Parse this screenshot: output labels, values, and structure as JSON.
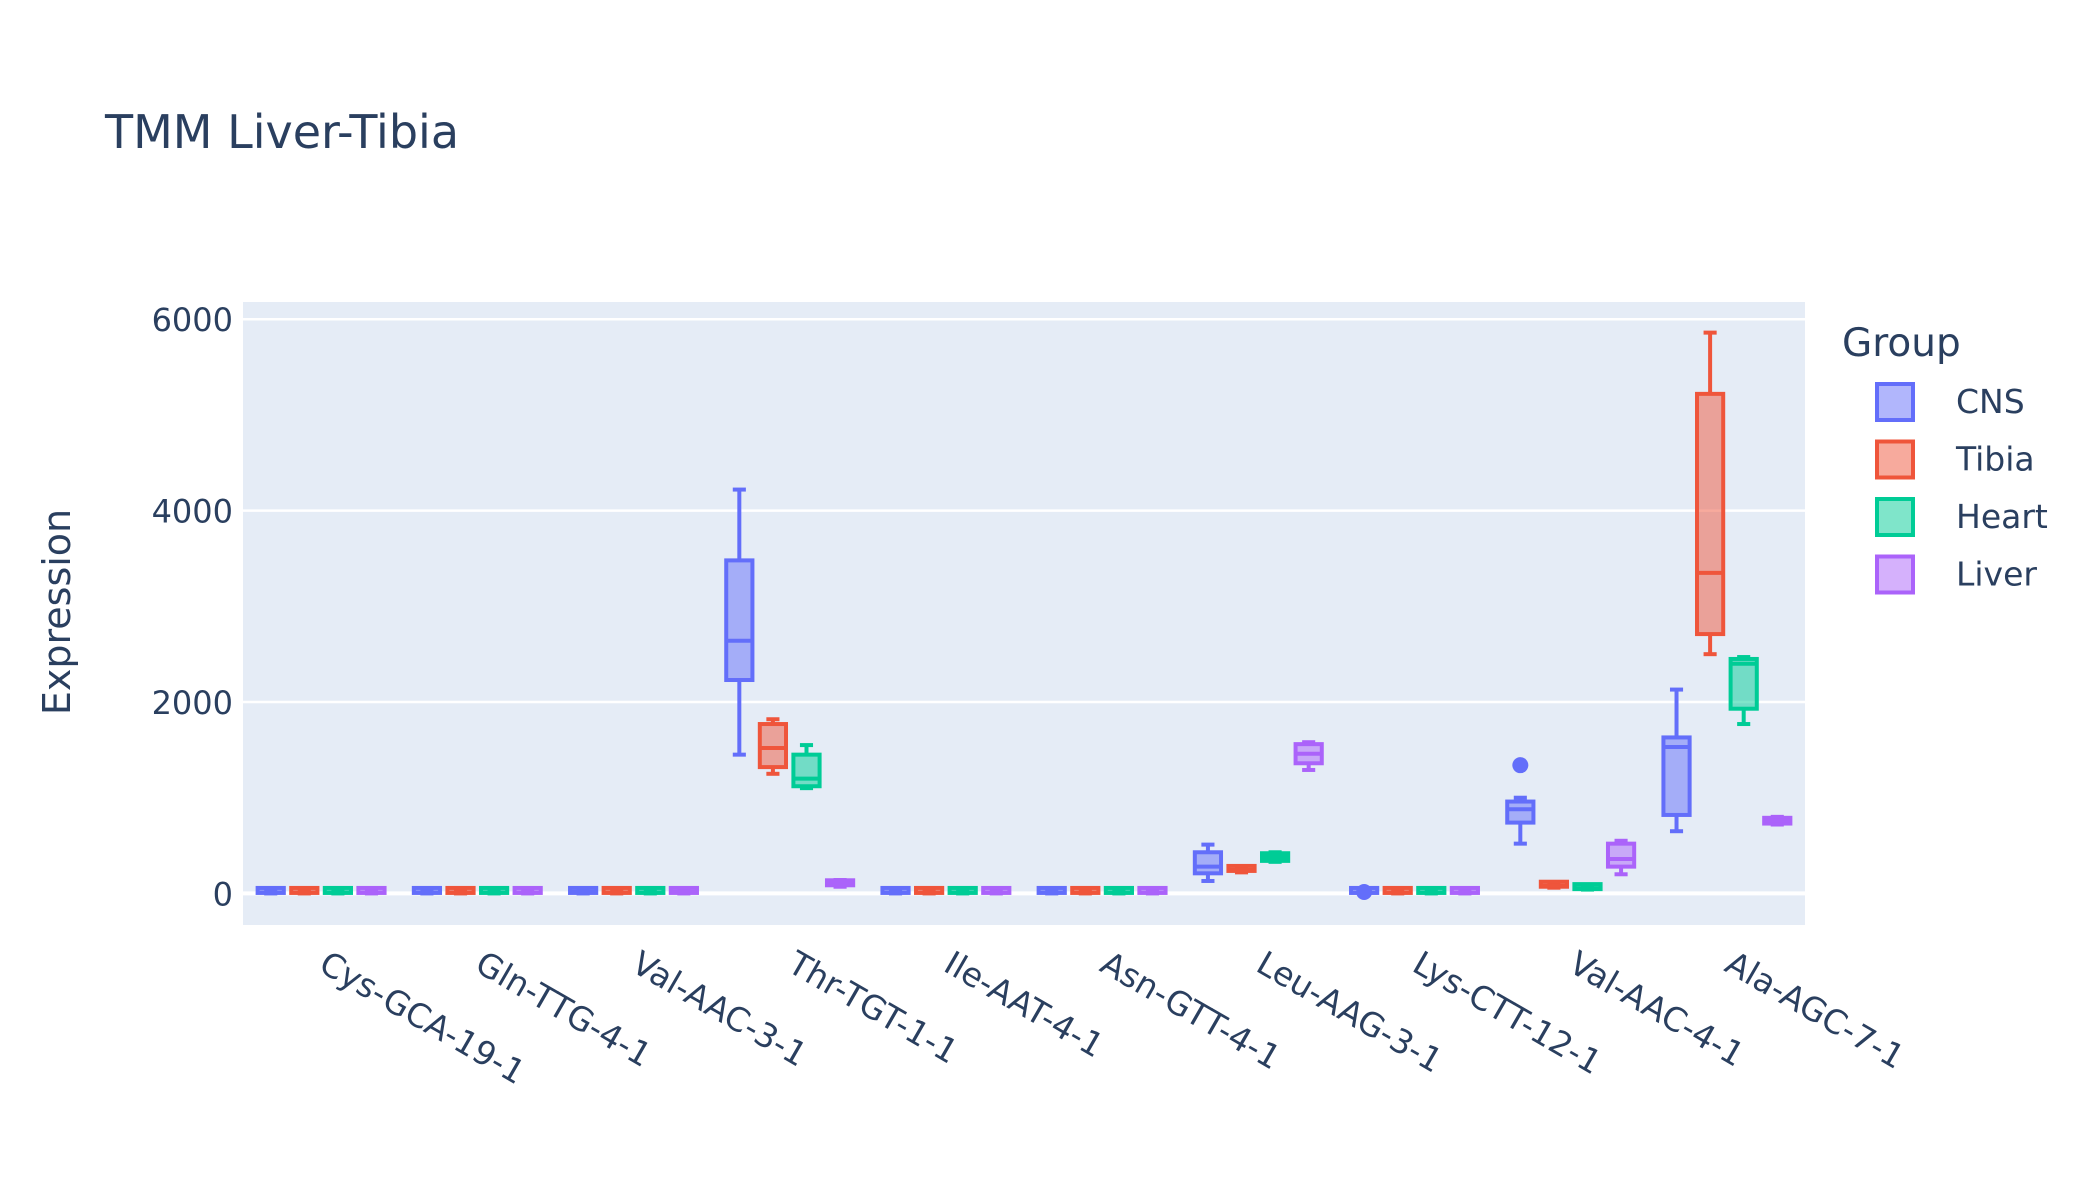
{
  "chart_data": {
    "type": "box",
    "title": "TMM Liver-Tibia",
    "ylabel": "Expression",
    "xlabel": "",
    "ylim": [
      -330,
      6180
    ],
    "yticks": [
      0,
      2000,
      4000,
      6000
    ],
    "grid": true,
    "legend": {
      "title": "Group",
      "placement": "right"
    },
    "categories": [
      "Cys-GCA-19-1",
      "Gln-TTG-4-1",
      "Val-AAC-3-1",
      "Thr-TGT-1-1",
      "Ile-AAT-4-1",
      "Asn-GTT-4-1",
      "Leu-AAG-3-1",
      "Lys-CTT-12-1",
      "Val-AAC-4-1",
      "Ala-AGC-7-1"
    ],
    "series": [
      {
        "name": "CNS",
        "color": "#636efa",
        "boxes": [
          {
            "min": 0,
            "q1": 5,
            "median": 10,
            "q3": 20,
            "max": 25,
            "outliers": []
          },
          {
            "min": 0,
            "q1": 5,
            "median": 10,
            "q3": 20,
            "max": 25,
            "outliers": []
          },
          {
            "min": 0,
            "q1": 5,
            "median": 15,
            "q3": 30,
            "max": 40,
            "outliers": []
          },
          {
            "min": 1450,
            "q1": 2230,
            "median": 2640,
            "q3": 3480,
            "max": 4220,
            "outliers": []
          },
          {
            "min": 0,
            "q1": 5,
            "median": 10,
            "q3": 20,
            "max": 25,
            "outliers": []
          },
          {
            "min": 0,
            "q1": 5,
            "median": 10,
            "q3": 20,
            "max": 25,
            "outliers": []
          },
          {
            "min": 130,
            "q1": 210,
            "median": 280,
            "q3": 430,
            "max": 510,
            "outliers": []
          },
          {
            "min": 0,
            "q1": 5,
            "median": 8,
            "q3": 12,
            "max": 15,
            "outliers": [
              15
            ]
          },
          {
            "min": 520,
            "q1": 740,
            "median": 880,
            "q3": 960,
            "max": 1000,
            "outliers": [
              1340
            ]
          },
          {
            "min": 650,
            "q1": 820,
            "median": 1530,
            "q3": 1630,
            "max": 2130,
            "outliers": []
          }
        ]
      },
      {
        "name": "Tibia",
        "color": "#ef553b",
        "boxes": [
          {
            "min": 0,
            "q1": 5,
            "median": 10,
            "q3": 20,
            "max": 25,
            "outliers": []
          },
          {
            "min": 0,
            "q1": 5,
            "median": 10,
            "q3": 20,
            "max": 25,
            "outliers": []
          },
          {
            "min": 0,
            "q1": 5,
            "median": 10,
            "q3": 20,
            "max": 25,
            "outliers": []
          },
          {
            "min": 1250,
            "q1": 1320,
            "median": 1520,
            "q3": 1770,
            "max": 1820,
            "outliers": []
          },
          {
            "min": 0,
            "q1": 5,
            "median": 10,
            "q3": 20,
            "max": 25,
            "outliers": []
          },
          {
            "min": 0,
            "q1": 5,
            "median": 10,
            "q3": 20,
            "max": 25,
            "outliers": []
          },
          {
            "min": 220,
            "q1": 235,
            "median": 245,
            "q3": 260,
            "max": 270,
            "outliers": []
          },
          {
            "min": 0,
            "q1": 5,
            "median": 10,
            "q3": 20,
            "max": 25,
            "outliers": []
          },
          {
            "min": 60,
            "q1": 70,
            "median": 80,
            "q3": 95,
            "max": 100,
            "outliers": []
          },
          {
            "min": 2500,
            "q1": 2710,
            "median": 3350,
            "q3": 5220,
            "max": 5860,
            "outliers": []
          }
        ]
      },
      {
        "name": "Heart",
        "color": "#00cc96",
        "boxes": [
          {
            "min": 0,
            "q1": 5,
            "median": 10,
            "q3": 20,
            "max": 25,
            "outliers": []
          },
          {
            "min": 0,
            "q1": 5,
            "median": 10,
            "q3": 20,
            "max": 25,
            "outliers": []
          },
          {
            "min": 0,
            "q1": 5,
            "median": 10,
            "q3": 20,
            "max": 25,
            "outliers": []
          },
          {
            "min": 1100,
            "q1": 1120,
            "median": 1200,
            "q3": 1450,
            "max": 1550,
            "outliers": []
          },
          {
            "min": 0,
            "q1": 5,
            "median": 10,
            "q3": 20,
            "max": 25,
            "outliers": []
          },
          {
            "min": 0,
            "q1": 5,
            "median": 10,
            "q3": 20,
            "max": 25,
            "outliers": []
          },
          {
            "min": 330,
            "q1": 340,
            "median": 380,
            "q3": 420,
            "max": 430,
            "outliers": []
          },
          {
            "min": 0,
            "q1": 5,
            "median": 10,
            "q3": 20,
            "max": 25,
            "outliers": []
          },
          {
            "min": 40,
            "q1": 45,
            "median": 55,
            "q3": 70,
            "max": 75,
            "outliers": []
          },
          {
            "min": 1770,
            "q1": 1930,
            "median": 2400,
            "q3": 2450,
            "max": 2470,
            "outliers": []
          }
        ]
      },
      {
        "name": "Liver",
        "color": "#ab63fa",
        "boxes": [
          {
            "min": 0,
            "q1": 5,
            "median": 10,
            "q3": 20,
            "max": 25,
            "outliers": []
          },
          {
            "min": 0,
            "q1": 5,
            "median": 10,
            "q3": 20,
            "max": 25,
            "outliers": []
          },
          {
            "min": 0,
            "q1": 5,
            "median": 15,
            "q3": 30,
            "max": 40,
            "outliers": []
          },
          {
            "min": 70,
            "q1": 85,
            "median": 105,
            "q3": 130,
            "max": 140,
            "outliers": []
          },
          {
            "min": 0,
            "q1": 5,
            "median": 10,
            "q3": 20,
            "max": 25,
            "outliers": []
          },
          {
            "min": 0,
            "q1": 5,
            "median": 10,
            "q3": 20,
            "max": 25,
            "outliers": []
          },
          {
            "min": 1290,
            "q1": 1360,
            "median": 1460,
            "q3": 1560,
            "max": 1580,
            "outliers": []
          },
          {
            "min": 0,
            "q1": 5,
            "median": 10,
            "q3": 20,
            "max": 25,
            "outliers": []
          },
          {
            "min": 200,
            "q1": 280,
            "median": 360,
            "q3": 520,
            "max": 550,
            "outliers": []
          },
          {
            "min": 720,
            "q1": 730,
            "median": 760,
            "q3": 790,
            "max": 800,
            "outliers": []
          }
        ]
      }
    ]
  }
}
